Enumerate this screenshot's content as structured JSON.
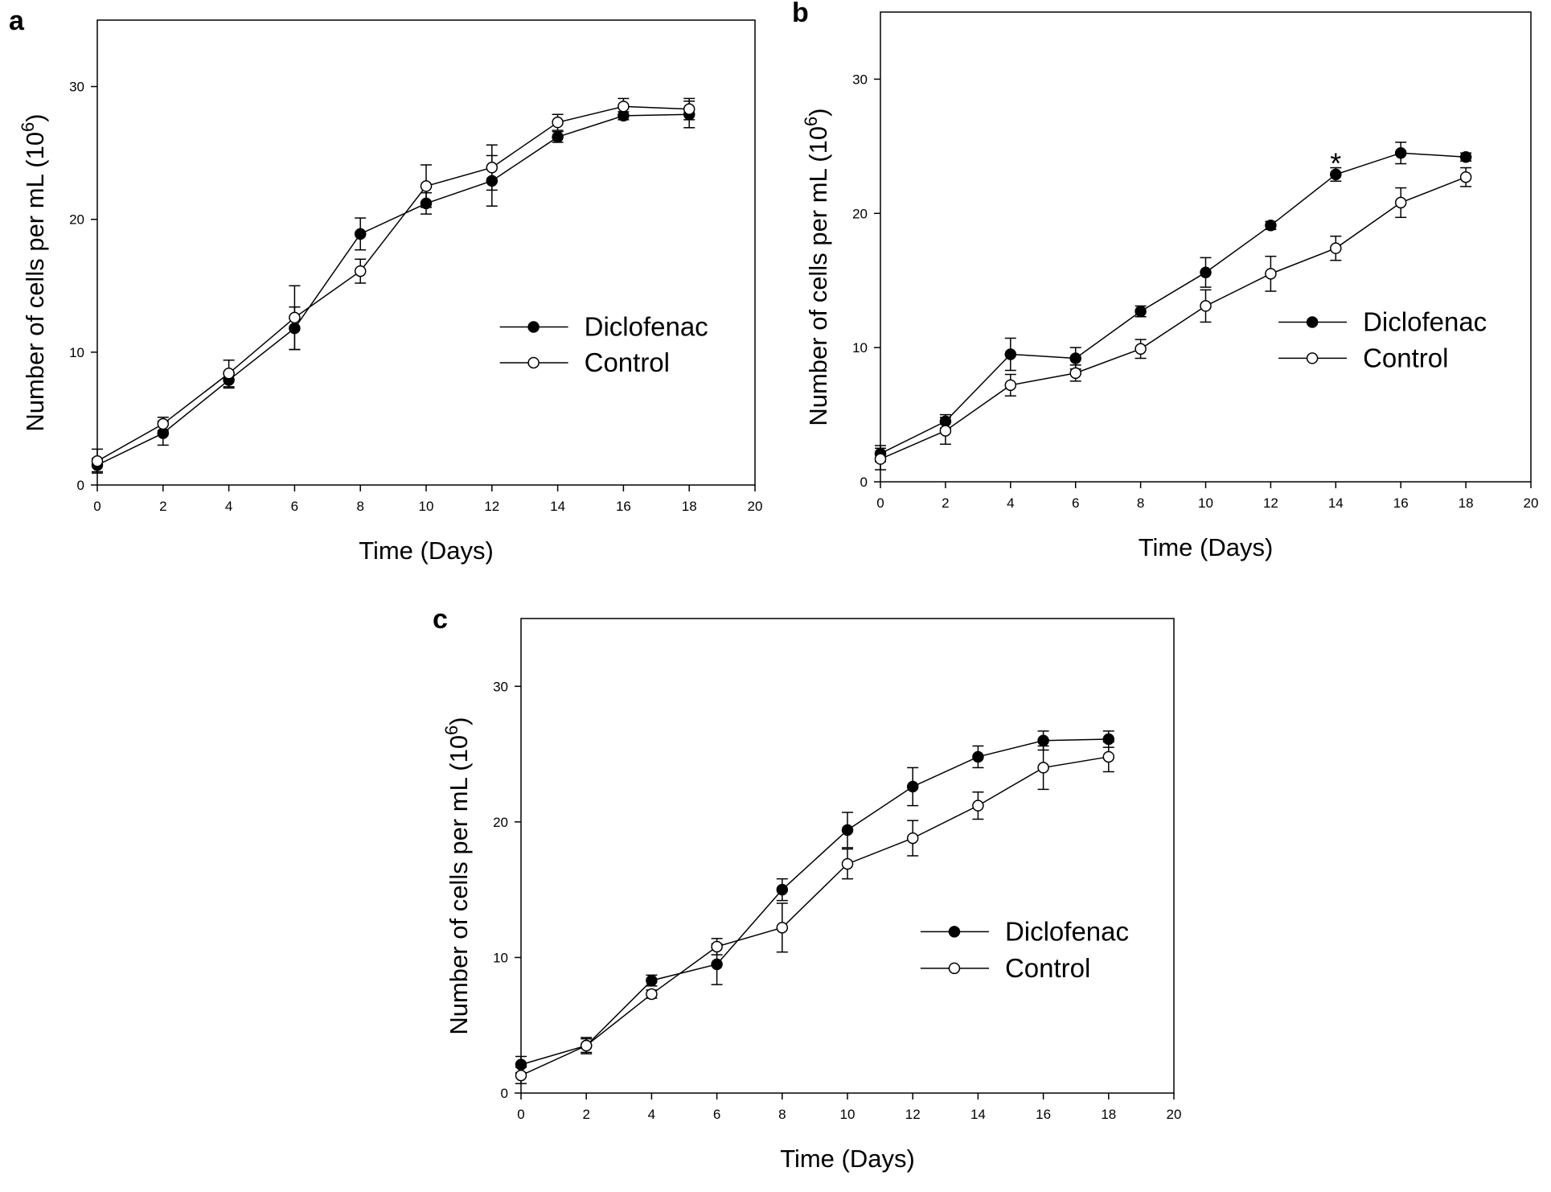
{
  "chart_data": [
    {
      "type": "line",
      "panel_label": "a",
      "xlabel": "Time (Days)",
      "ylabel": "Number of cells per mL (10",
      "ylabel_sup": "6",
      "ylabel_close": ")",
      "xlim": [
        0,
        20
      ],
      "ylim": [
        0,
        35
      ],
      "xticks": [
        0,
        2,
        4,
        6,
        8,
        10,
        12,
        14,
        16,
        18,
        20
      ],
      "yticks": [
        0,
        10,
        20,
        30
      ],
      "grid": false,
      "legend_position": "lower-right",
      "x": [
        0,
        2,
        4,
        6,
        8,
        10,
        12,
        14,
        16,
        18
      ],
      "series": [
        {
          "name": "Diclofenac",
          "marker": "filled-circle",
          "values": [
            1.5,
            3.9,
            7.9,
            11.8,
            18.9,
            21.2,
            22.9,
            26.2,
            27.8,
            27.9
          ],
          "errors": [
            0.5,
            0.9,
            0.6,
            1.6,
            1.2,
            0.8,
            1.9,
            0.4,
            0.3,
            1.0
          ]
        },
        {
          "name": "Control",
          "marker": "open-circle",
          "values": [
            1.8,
            4.6,
            8.4,
            12.6,
            16.1,
            22.5,
            23.9,
            27.3,
            28.5,
            28.3
          ],
          "errors": [
            0.9,
            0.5,
            1.0,
            2.4,
            0.9,
            1.6,
            1.7,
            0.6,
            0.6,
            0.8
          ]
        }
      ],
      "annotations": []
    },
    {
      "type": "line",
      "panel_label": "b",
      "xlabel": "Time (Days)",
      "ylabel": "Number of cells per mL (10",
      "ylabel_sup": "6",
      "ylabel_close": ")",
      "xlim": [
        0,
        20
      ],
      "ylim": [
        0,
        35
      ],
      "xticks": [
        0,
        2,
        4,
        6,
        8,
        10,
        12,
        14,
        16,
        18,
        20
      ],
      "yticks": [
        0,
        10,
        20,
        30
      ],
      "grid": false,
      "legend_position": "lower-right",
      "x": [
        0,
        2,
        4,
        6,
        8,
        10,
        12,
        14,
        16,
        18
      ],
      "series": [
        {
          "name": "Diclofenac",
          "marker": "filled-circle",
          "values": [
            2.1,
            4.5,
            9.5,
            9.2,
            12.7,
            15.6,
            19.1,
            22.9,
            24.5,
            24.2
          ],
          "errors": [
            0.6,
            0.5,
            1.2,
            0.8,
            0.4,
            1.1,
            0.3,
            0.5,
            0.8,
            0.3
          ]
        },
        {
          "name": "Control",
          "marker": "open-circle",
          "values": [
            1.7,
            3.8,
            7.2,
            8.1,
            9.9,
            13.1,
            15.5,
            17.4,
            20.8,
            22.7
          ],
          "errors": [
            0.8,
            1.0,
            0.8,
            0.6,
            0.7,
            1.2,
            1.3,
            0.9,
            1.1,
            0.7
          ]
        }
      ],
      "annotations": [
        {
          "text": "*",
          "x": 14,
          "y": 24.3
        }
      ]
    },
    {
      "type": "line",
      "panel_label": "c",
      "xlabel": "Time (Days)",
      "ylabel": "Number of cells per mL (10",
      "ylabel_sup": "6",
      "ylabel_close": ")",
      "xlim": [
        0,
        20
      ],
      "ylim": [
        0,
        35
      ],
      "xticks": [
        0,
        2,
        4,
        6,
        8,
        10,
        12,
        14,
        16,
        18,
        20
      ],
      "yticks": [
        0,
        10,
        20,
        30
      ],
      "grid": false,
      "legend_position": "lower-right",
      "x": [
        0,
        2,
        4,
        6,
        8,
        10,
        12,
        14,
        16,
        18
      ],
      "series": [
        {
          "name": "Diclofenac",
          "marker": "filled-circle",
          "values": [
            2.1,
            3.5,
            8.3,
            9.5,
            15.0,
            19.4,
            22.6,
            24.8,
            26.0,
            26.1
          ],
          "errors": [
            0.6,
            0.6,
            0.4,
            1.5,
            0.8,
            1.3,
            1.4,
            0.8,
            0.7,
            0.6
          ]
        },
        {
          "name": "Control",
          "marker": "open-circle",
          "values": [
            1.3,
            3.5,
            7.3,
            10.8,
            12.2,
            16.9,
            18.8,
            21.2,
            24.0,
            24.8
          ],
          "errors": [
            0.6,
            0.5,
            0.3,
            0.6,
            1.8,
            1.1,
            1.3,
            1.0,
            1.6,
            1.1
          ]
        }
      ],
      "annotations": []
    }
  ]
}
